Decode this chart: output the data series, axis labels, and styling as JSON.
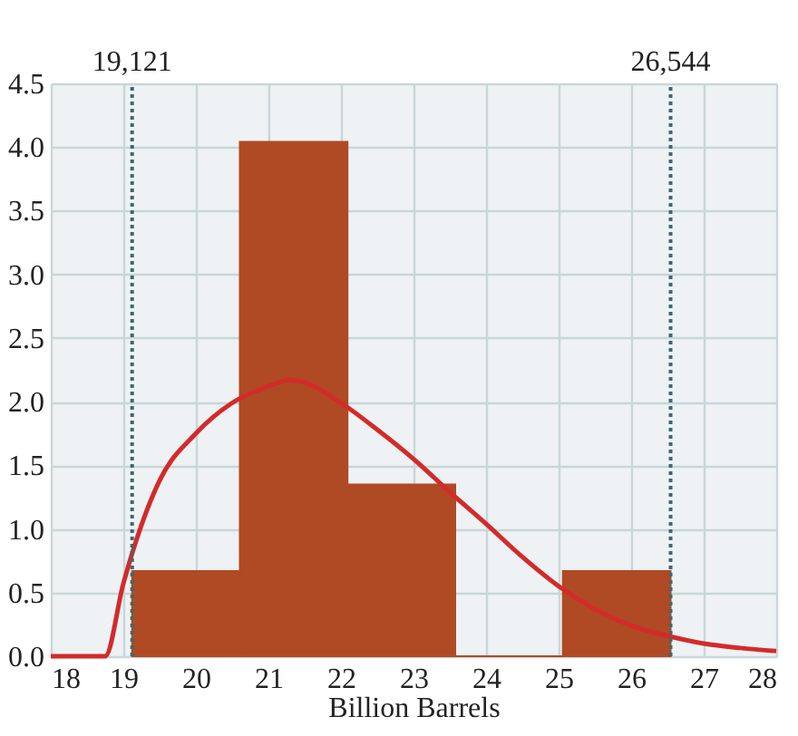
{
  "chart_data": {
    "type": "histogram",
    "xlabel": "Billion Barrels",
    "bins": [
      19.121,
      20.606,
      22.09,
      23.575,
      25.059,
      26.544
    ],
    "values": [
      0.67,
      4.04,
      1.35,
      0,
      0.67
    ],
    "color": "#b04a24",
    "series": [
      {
        "type": "line",
        "color": "#d42a2a",
        "x": [
          18,
          18.75,
          19,
          19.5,
          20,
          20.5,
          21,
          21.3,
          21.5,
          22,
          22.5,
          23,
          23.5,
          24,
          24.5,
          25,
          25.5,
          26,
          26.5,
          27,
          27.5,
          28
        ],
        "values": [
          0,
          0,
          0.57,
          1.38,
          1.75,
          1.99,
          2.12,
          2.17,
          2.15,
          1.99,
          1.78,
          1.55,
          1.29,
          1.04,
          0.78,
          0.55,
          0.37,
          0.24,
          0.16,
          0.1,
          0.065,
          0.04
        ]
      }
    ],
    "ref_lines": [
      {
        "axis": "x",
        "value": 19.121,
        "label": "19,121",
        "color": "#3a6a70",
        "line_style": "dotted"
      },
      {
        "axis": "x",
        "value": 26.544,
        "label": "26,544",
        "color": "#3a6a70",
        "line_style": "dotted"
      }
    ],
    "xlim": [
      18,
      28
    ],
    "xticks": [
      18,
      19,
      20,
      21,
      22,
      23,
      24,
      25,
      26,
      27,
      28
    ],
    "ylim": [
      0,
      4.5
    ],
    "yticks": [
      {
        "value": 0,
        "label": "0.0"
      },
      {
        "value": 0.5,
        "label": "0.5"
      },
      {
        "value": 1,
        "label": "1.0"
      },
      {
        "value": 1.5,
        "label": "1.5"
      },
      {
        "value": 2,
        "label": "2.0"
      },
      {
        "value": 2.5,
        "label": "2.5"
      },
      {
        "value": 3,
        "label": "3.0"
      },
      {
        "value": 3.5,
        "label": "3.5"
      },
      {
        "value": 4,
        "label": "4.0"
      },
      {
        "value": 4.5,
        "label": "4.5"
      }
    ],
    "grid": true
  }
}
